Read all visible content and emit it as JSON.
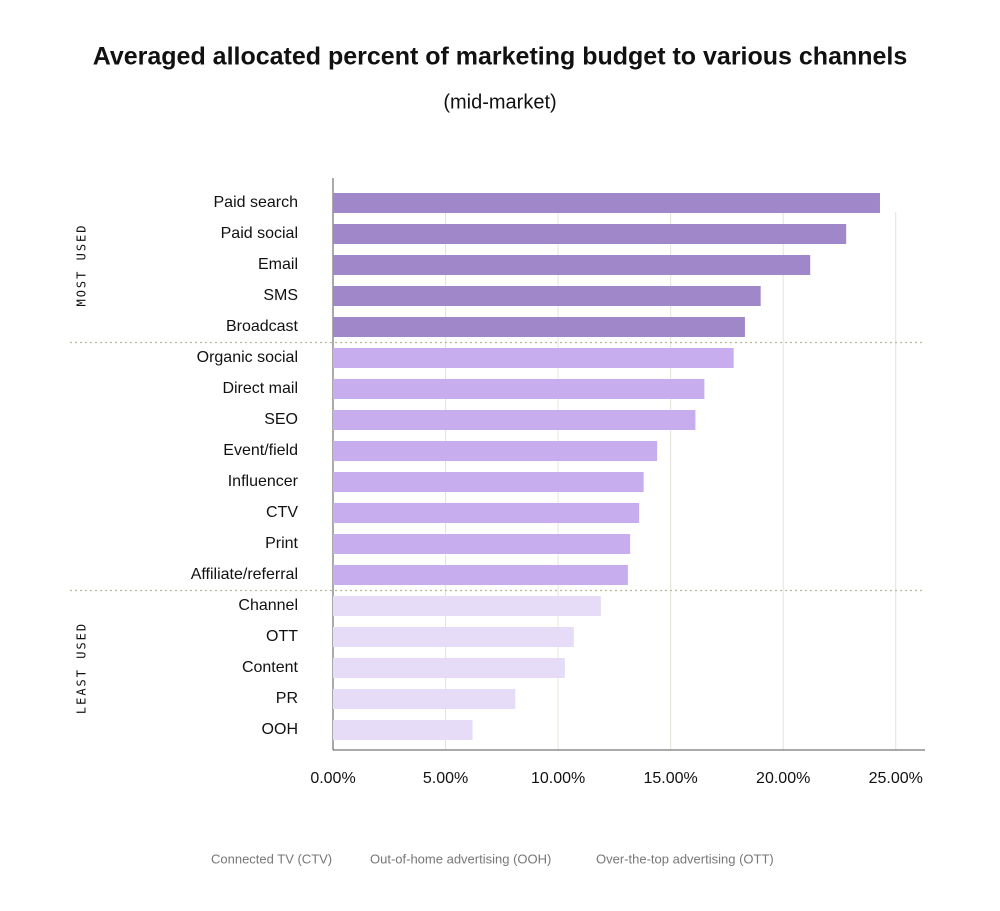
{
  "chart_data": {
    "type": "bar",
    "orientation": "horizontal",
    "title": "Averaged allocated percent of marketing budget to various channels",
    "subtitle": "(mid-market)",
    "groups": [
      {
        "name": "MOST USED",
        "color": "#9f87c9",
        "categories": [
          "Paid search",
          "Paid social",
          "Email",
          "SMS",
          "Broadcast"
        ],
        "values": [
          24.3,
          22.8,
          21.2,
          19.0,
          18.3
        ]
      },
      {
        "name": null,
        "color": "#c8adee",
        "categories": [
          "Organic social",
          "Direct mail",
          "SEO",
          "Event/field",
          "Influencer",
          "CTV",
          "Print",
          "Affiliate/referral"
        ],
        "values": [
          17.8,
          16.5,
          16.1,
          14.4,
          13.8,
          13.6,
          13.2,
          13.1
        ]
      },
      {
        "name": "LEAST USED",
        "color": "#e6dcf8",
        "categories": [
          "Channel",
          "OTT",
          "Content",
          "PR",
          "OOH"
        ],
        "values": [
          11.9,
          10.7,
          10.3,
          8.1,
          6.2
        ]
      }
    ],
    "xlim": [
      0,
      26.3
    ],
    "xticks": [
      {
        "value": 0,
        "label": "0.00%"
      },
      {
        "value": 5,
        "label": "5.00%"
      },
      {
        "value": 10,
        "label": "10.00%"
      },
      {
        "value": 15,
        "label": "15.00%"
      },
      {
        "value": 20,
        "label": "20.00%"
      },
      {
        "value": 25,
        "label": "25.00%"
      }
    ],
    "grid": true,
    "notes": [
      "Connected TV (CTV)",
      "Out-of-home advertising (OOH)",
      "Over-the-top advertising (OTT)"
    ]
  }
}
